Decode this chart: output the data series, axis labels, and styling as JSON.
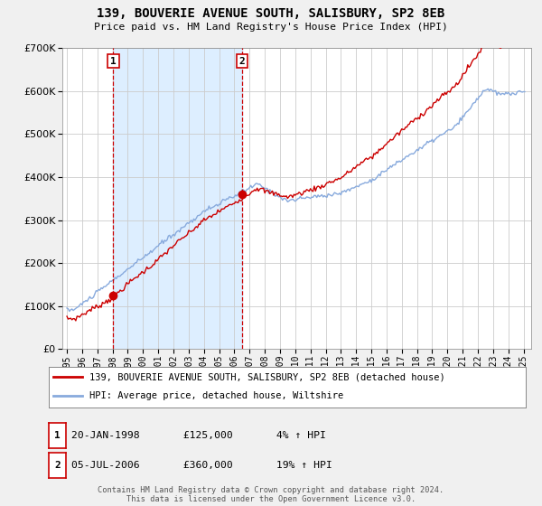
{
  "title": "139, BOUVERIE AVENUE SOUTH, SALISBURY, SP2 8EB",
  "subtitle": "Price paid vs. HM Land Registry's House Price Index (HPI)",
  "ylim": [
    0,
    700000
  ],
  "yticks": [
    0,
    100000,
    200000,
    300000,
    400000,
    500000,
    600000,
    700000
  ],
  "sale1": {
    "date_num": 1998.05,
    "price": 125000,
    "label": "1",
    "text": "20-JAN-1998",
    "amount": "£125,000",
    "hpi": "4% ↑ HPI"
  },
  "sale2": {
    "date_num": 2006.51,
    "price": 360000,
    "label": "2",
    "text": "05-JUL-2006",
    "amount": "£360,000",
    "hpi": "19% ↑ HPI"
  },
  "legend_line1": "139, BOUVERIE AVENUE SOUTH, SALISBURY, SP2 8EB (detached house)",
  "legend_line2": "HPI: Average price, detached house, Wiltshire",
  "footer": "Contains HM Land Registry data © Crown copyright and database right 2024.\nThis data is licensed under the Open Government Licence v3.0.",
  "line_color": "#cc0000",
  "hpi_color": "#88aadd",
  "background_color": "#ddeeff",
  "plot_bg": "#ffffff",
  "shade_color": "#ddeeff",
  "grid_color": "#cccccc",
  "vline_color": "#cc0000"
}
